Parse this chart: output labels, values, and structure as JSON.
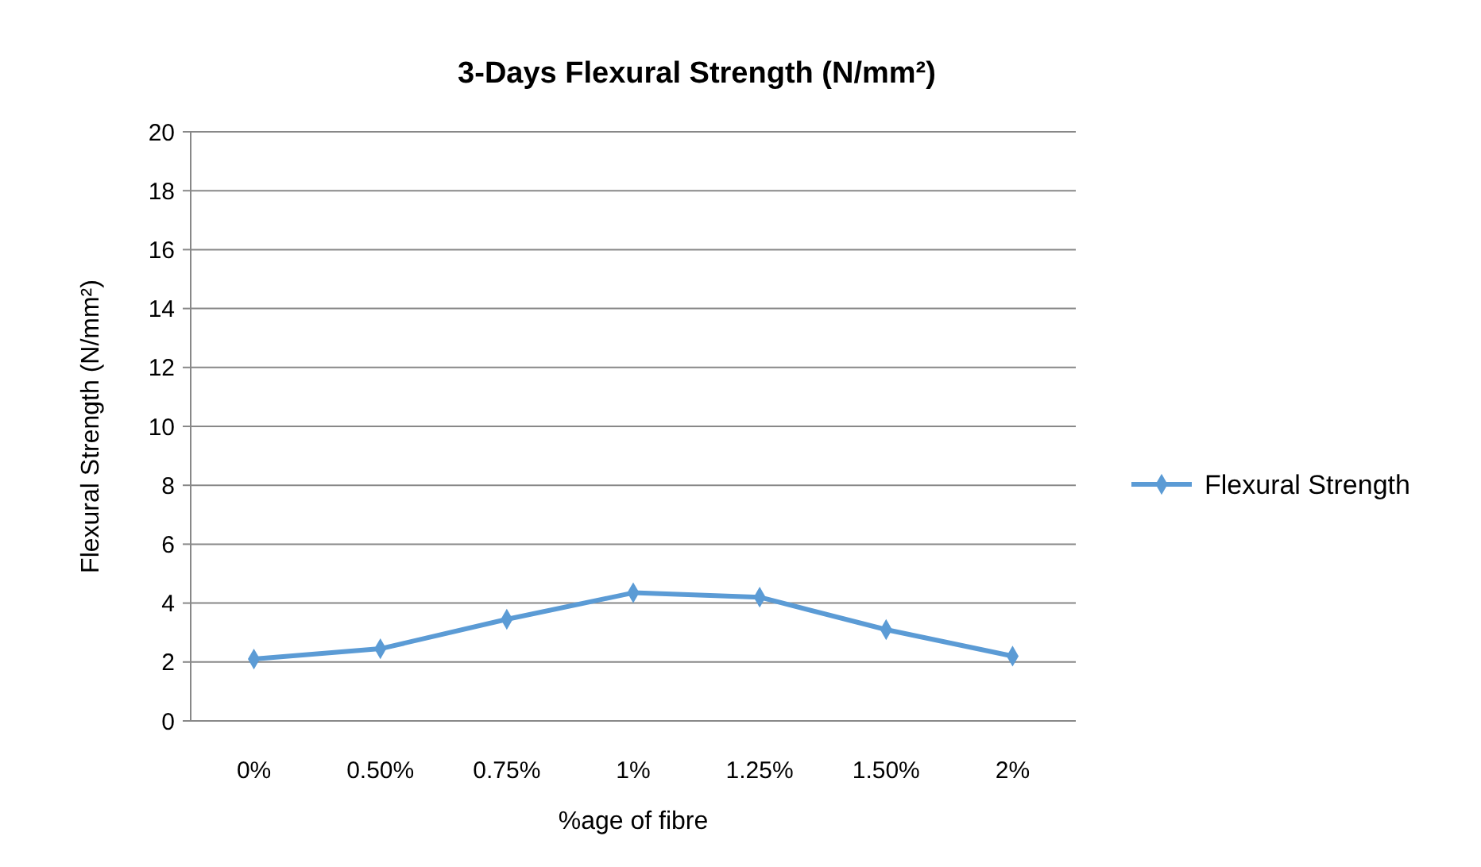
{
  "chart_data": {
    "type": "line",
    "title": "3-Days Flexural Strength (N/mm²)",
    "xlabel": "%age of fibre",
    "ylabel": "Flexural Strength (N/mm²)",
    "categories": [
      "0%",
      "0.50%",
      "0.75%",
      "1%",
      "1.25%",
      "1.50%",
      "2%"
    ],
    "series": [
      {
        "name": "Flexural Strength",
        "color": "#5b9bd5",
        "values": [
          2.1,
          2.45,
          3.45,
          4.35,
          4.2,
          3.1,
          2.2
        ]
      }
    ],
    "ylim": [
      0,
      20
    ],
    "yticks": [
      0,
      2,
      4,
      6,
      8,
      10,
      12,
      14,
      16,
      18,
      20
    ],
    "grid": "y",
    "legend": "right",
    "marker": "diamond",
    "line_style": "solid"
  }
}
